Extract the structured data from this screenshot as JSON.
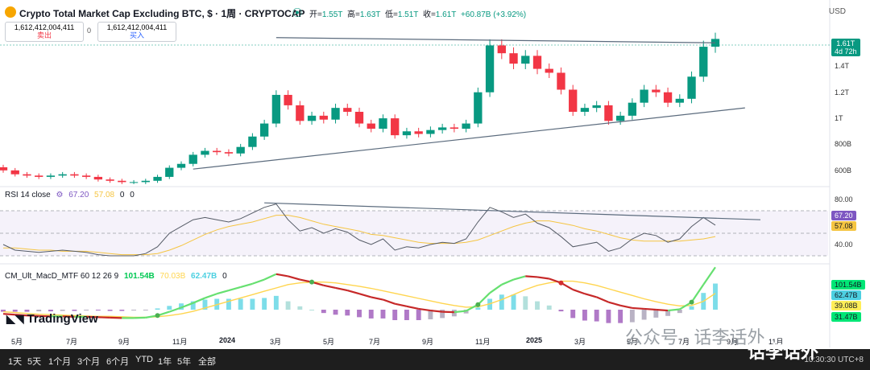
{
  "header": {
    "title": "Crypto Total Market Cap Excluding BTC, $ · 1周 · CRYPTOCAP",
    "ohlc": [
      {
        "label": "开=",
        "value": "1.55T"
      },
      {
        "label": "高=",
        "value": "1.63T"
      },
      {
        "label": "低=",
        "value": "1.51T"
      },
      {
        "label": "收=",
        "value": "1.61T"
      },
      {
        "label": "",
        "value": "+60.87B (+3.92%)"
      }
    ],
    "currency": "USD"
  },
  "trade": {
    "sell_price": "1,612,412,004,411",
    "sell_label": "卖出",
    "spread": "0",
    "buy_price": "1,612,412,004,411",
    "buy_label": "买入"
  },
  "price_tag": {
    "value": "1.61T",
    "countdown": "4d 72h"
  },
  "rsi": {
    "legend_label": "RSI 14 close",
    "value": "67.20",
    "ma_value": "57.08",
    "extra1": "0",
    "extra2": "0",
    "tag_value": "67.20",
    "tag_ma": "57.08",
    "levels": [
      "80.00",
      "40.00"
    ]
  },
  "macd": {
    "legend_label": "CM_Ult_MacD_MTF 60 12 26 9",
    "v1": "101.54B",
    "v2": "70.03B",
    "v3": "62.47B",
    "v4": "0",
    "tags": [
      "101.54B",
      "62.47B",
      "39.08B",
      "31.47B"
    ]
  },
  "brand": "TradingView",
  "bottom_bar": {
    "ranges": [
      "1天",
      "5天",
      "1个月",
      "3个月",
      "6个月",
      "YTD",
      "1年",
      "5年",
      "全部"
    ],
    "clock": "10:30:30 UTC+8"
  },
  "watermark": {
    "line1": "公众号 · 话李话外",
    "line2": "话李话外"
  },
  "chart_data": [
    {
      "type": "candlestick",
      "title": "Crypto Total Market Cap Excluding BTC, $ · 1周 · CRYPTOCAP",
      "y_unit": "USD",
      "y_tick_labels": [
        "1.4T",
        "1.2T",
        "1T",
        "800B",
        "600B"
      ],
      "x_tick_labels": [
        "5月",
        "7月",
        "9月",
        "11月",
        "2024",
        "3月",
        "5月",
        "7月",
        "9月",
        "11月",
        "2025",
        "3月",
        "5月",
        "7月",
        "9月",
        "11月"
      ],
      "ylim": [
        0.45,
        1.8
      ],
      "x": [
        "2023-04-24",
        "2023-05-08",
        "2023-05-22",
        "2023-06-05",
        "2023-06-19",
        "2023-07-03",
        "2023-07-17",
        "2023-07-31",
        "2023-08-14",
        "2023-08-28",
        "2023-09-11",
        "2023-09-25",
        "2023-10-09",
        "2023-10-23",
        "2023-11-06",
        "2023-11-20",
        "2023-12-04",
        "2023-12-18",
        "2024-01-01",
        "2024-01-15",
        "2024-01-29",
        "2024-02-12",
        "2024-02-26",
        "2024-03-11",
        "2024-03-25",
        "2024-04-08",
        "2024-04-22",
        "2024-05-06",
        "2024-05-20",
        "2024-06-03",
        "2024-06-17",
        "2024-07-01",
        "2024-07-15",
        "2024-07-29",
        "2024-08-12",
        "2024-08-26",
        "2024-09-09",
        "2024-09-23",
        "2024-10-07",
        "2024-10-21",
        "2024-11-04",
        "2024-11-18",
        "2024-12-02",
        "2024-12-16",
        "2024-12-30",
        "2025-01-13",
        "2025-01-27",
        "2025-02-10",
        "2025-02-24",
        "2025-03-10",
        "2025-03-24",
        "2025-04-07",
        "2025-04-21",
        "2025-05-05",
        "2025-05-19",
        "2025-06-02",
        "2025-06-16",
        "2025-06-30",
        "2025-07-14",
        "2025-07-28",
        "2025-08-11"
      ],
      "close": [
        0.6,
        0.57,
        0.56,
        0.55,
        0.56,
        0.57,
        0.56,
        0.55,
        0.53,
        0.52,
        0.51,
        0.51,
        0.52,
        0.55,
        0.62,
        0.65,
        0.72,
        0.75,
        0.74,
        0.73,
        0.78,
        0.86,
        0.96,
        1.18,
        1.1,
        0.98,
        1.02,
        0.99,
        1.08,
        1.05,
        0.96,
        0.92,
        1.0,
        0.87,
        0.9,
        0.88,
        0.91,
        0.93,
        0.92,
        0.96,
        1.2,
        1.56,
        1.5,
        1.42,
        1.48,
        1.38,
        1.35,
        1.22,
        1.05,
        1.08,
        1.1,
        0.98,
        1.02,
        1.12,
        1.22,
        1.2,
        1.12,
        1.15,
        1.32,
        1.55,
        1.61
      ],
      "trendlines": [
        {
          "label": "",
          "from": [
            "2024-03-11",
            1.62
          ],
          "to": [
            "2025-08-11",
            1.58
          ]
        },
        {
          "label": "",
          "from": [
            "2023-12-04",
            0.61
          ],
          "to": [
            "2025-09-15",
            1.08
          ]
        }
      ]
    },
    {
      "type": "line",
      "title": "RSI 14 close",
      "ylim": [
        30,
        90
      ],
      "levels": [
        80,
        40
      ],
      "series": [
        {
          "name": "RSI 14 close",
          "values": [
            50,
            45,
            44,
            43,
            44,
            45,
            44,
            43,
            41,
            40,
            40,
            40,
            42,
            48,
            60,
            66,
            72,
            74,
            72,
            70,
            73,
            78,
            83,
            86,
            72,
            62,
            65,
            60,
            64,
            61,
            54,
            50,
            55,
            45,
            48,
            47,
            50,
            52,
            51,
            55,
            70,
            83,
            79,
            74,
            77,
            69,
            65,
            57,
            48,
            50,
            52,
            44,
            47,
            55,
            60,
            58,
            52,
            55,
            66,
            74,
            67.2
          ]
        },
        {
          "name": "",
          "values": [
            47,
            47,
            46,
            45,
            45,
            44,
            44,
            44,
            43,
            42,
            41,
            41,
            41,
            42,
            45,
            49,
            54,
            59,
            63,
            66,
            68,
            70,
            73,
            76,
            76,
            74,
            71,
            68,
            66,
            64,
            62,
            59,
            58,
            56,
            54,
            52,
            51,
            51,
            51,
            52,
            54,
            58,
            62,
            66,
            69,
            71,
            71,
            69,
            67,
            64,
            62,
            59,
            56,
            54,
            53,
            53,
            53,
            53,
            54,
            55,
            57.08
          ]
        }
      ]
    },
    {
      "type": "line",
      "title": "CM_Ult_MacD_MTF 60 12 26 9",
      "series": [
        {
          "name": "MACD",
          "values": [
            -10,
            -12,
            -14,
            -15,
            -16,
            -16,
            -17,
            -17,
            -18,
            -19,
            -20,
            -20,
            -19,
            -14,
            -5,
            5,
            16,
            28,
            38,
            46,
            54,
            62,
            72,
            85,
            80,
            72,
            66,
            58,
            52,
            46,
            38,
            30,
            24,
            14,
            8,
            2,
            -2,
            -5,
            -6,
            -3,
            12,
            40,
            60,
            72,
            80,
            78,
            74,
            64,
            48,
            38,
            30,
            18,
            10,
            4,
            2,
            0,
            -2,
            1,
            18,
            60,
            101.54
          ]
        },
        {
          "name": "Signal",
          "values": [
            -5,
            -7,
            -9,
            -11,
            -12,
            -13,
            -14,
            -15,
            -16,
            -16,
            -17,
            -18,
            -18,
            -17,
            -14,
            -10,
            -4,
            4,
            12,
            20,
            28,
            36,
            44,
            52,
            60,
            64,
            66,
            66,
            64,
            60,
            56,
            51,
            45,
            39,
            33,
            27,
            21,
            15,
            10,
            6,
            7,
            14,
            24,
            36,
            48,
            58,
            64,
            68,
            68,
            64,
            58,
            50,
            42,
            34,
            26,
            19,
            13,
            9,
            10,
            20,
            39.08
          ]
        },
        {
          "name": "Histogram",
          "values": [
            -5,
            -5,
            -5,
            -4,
            -4,
            -3,
            -3,
            -2,
            -2,
            -3,
            -3,
            -2,
            -1,
            3,
            9,
            15,
            20,
            24,
            26,
            26,
            26,
            26,
            28,
            33,
            20,
            8,
            0,
            -8,
            -12,
            -14,
            -18,
            -21,
            -21,
            -25,
            -25,
            -25,
            -23,
            -20,
            -16,
            -9,
            5,
            26,
            36,
            36,
            32,
            20,
            10,
            -4,
            -20,
            -26,
            -28,
            -32,
            -32,
            -30,
            -24,
            -19,
            -15,
            -8,
            8,
            40,
            62.47
          ]
        }
      ]
    }
  ]
}
